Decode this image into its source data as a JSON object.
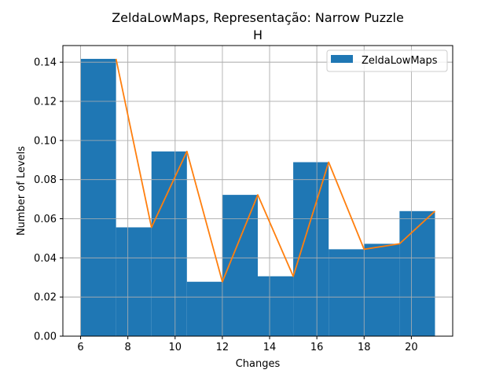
{
  "chart_data": {
    "type": "bar",
    "title": "ZeldaLowMaps, Representação: Narrow Puzzle",
    "subtitle": "H",
    "xlabel": "Changes",
    "ylabel": "Number of Levels",
    "xlim": [
      5.25,
      21.75
    ],
    "ylim": [
      0,
      0.1485
    ],
    "grid": true,
    "legend_placement": "top-right",
    "xticks": [
      6,
      8,
      10,
      12,
      14,
      16,
      18,
      20
    ],
    "yticks": [
      0.0,
      0.02,
      0.04,
      0.06,
      0.08,
      0.1,
      0.12,
      0.14
    ],
    "ytick_labels": [
      "0.00",
      "0.02",
      "0.04",
      "0.06",
      "0.08",
      "0.10",
      "0.12",
      "0.14"
    ],
    "bin_edges": [
      6,
      7.5,
      9,
      10.5,
      12,
      13.5,
      15,
      16.5,
      18,
      19.5,
      21
    ],
    "series": [
      {
        "name": "ZeldaLowMaps",
        "type": "histogram",
        "color": "#1f77b4",
        "values": [
          0.1417,
          0.0556,
          0.0944,
          0.0278,
          0.0722,
          0.0306,
          0.0889,
          0.0444,
          0.0472,
          0.0639
        ]
      },
      {
        "type": "line",
        "color": "#ff7f0e",
        "x": [
          7.5,
          9,
          10.5,
          12,
          13.5,
          15,
          16.5,
          18,
          19.5,
          21
        ],
        "values": [
          0.1417,
          0.0556,
          0.0944,
          0.0278,
          0.0722,
          0.0306,
          0.0889,
          0.0444,
          0.0472,
          0.0639
        ]
      }
    ]
  }
}
